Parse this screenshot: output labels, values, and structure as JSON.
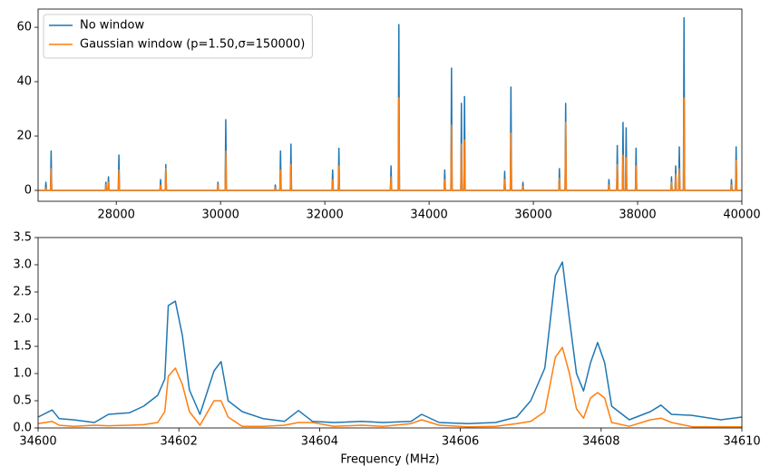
{
  "chart_data": [
    {
      "type": "line",
      "legend": "upper left",
      "x": [
        26500,
        26638,
        26650,
        26662,
        26738,
        26750,
        26762,
        27788,
        27800,
        27812,
        27838,
        27850,
        27862,
        28038,
        28050,
        28062,
        28838,
        28850,
        28862,
        28938,
        28950,
        28962,
        29938,
        29950,
        29962,
        30088,
        30100,
        30112,
        31038,
        31050,
        31062,
        31138,
        31150,
        31162,
        31338,
        31350,
        31362,
        32138,
        32150,
        32162,
        32258,
        32270,
        32282,
        33258,
        33270,
        33282,
        33408,
        33420,
        33432,
        34288,
        34300,
        34312,
        34418,
        34430,
        34442,
        34608,
        34620,
        34632,
        34668,
        34680,
        34692,
        35438,
        35450,
        35462,
        35558,
        35570,
        35582,
        35788,
        35800,
        35812,
        36488,
        36500,
        36512,
        36608,
        36620,
        36632,
        37438,
        37450,
        37462,
        37598,
        37610,
        37622,
        37708,
        37720,
        37732,
        37768,
        37780,
        37792,
        37958,
        37970,
        37982,
        38638,
        38650,
        38662,
        38718,
        38730,
        38742,
        38788,
        38800,
        38812,
        38878,
        38890,
        38902,
        39788,
        39800,
        39812,
        39878,
        39890,
        39902,
        40000
      ],
      "series": [
        {
          "name": "No window",
          "color": "#1f77b4",
          "values": [
            0,
            0,
            3,
            0,
            0,
            14.5,
            0,
            0,
            3,
            0,
            0,
            5,
            0,
            0,
            13,
            0,
            0,
            4,
            0,
            0,
            9.5,
            0,
            0,
            3,
            0,
            0,
            26,
            0,
            0,
            2,
            0,
            0,
            14.5,
            0,
            0,
            17,
            0,
            0,
            7.5,
            0,
            0,
            15.5,
            0,
            0,
            9,
            0,
            0,
            61,
            0,
            0,
            7.5,
            0,
            0,
            45,
            0,
            0,
            32,
            0,
            0,
            34.5,
            0,
            0,
            7,
            0,
            0,
            38,
            0,
            0,
            3,
            0,
            0,
            8,
            0,
            0,
            32,
            0,
            0,
            4,
            0,
            0,
            16.5,
            0,
            0,
            25,
            0,
            0,
            23,
            0,
            0,
            15.5,
            0,
            0,
            5,
            0,
            0,
            9,
            0,
            0,
            16,
            0,
            0,
            63.5,
            0,
            0,
            4,
            0,
            0,
            16,
            0,
            0
          ]
        },
        {
          "name": "Gaussian window (p=1.50,σ=150000)",
          "color": "#ff7f0e",
          "values": [
            0,
            0,
            1,
            0,
            0,
            8,
            0,
            0,
            2,
            0,
            0,
            3,
            0,
            0,
            7.5,
            0,
            0,
            2,
            0,
            0,
            8,
            0,
            0,
            2,
            0,
            0,
            14.5,
            0,
            0,
            1,
            0,
            0,
            7.5,
            0,
            0,
            9.5,
            0,
            0,
            4,
            0,
            0,
            9,
            0,
            0,
            5,
            0,
            0,
            34,
            0,
            0,
            4,
            0,
            0,
            24,
            0,
            0,
            17,
            0,
            0,
            18.5,
            0,
            0,
            4,
            0,
            0,
            21,
            0,
            0,
            1.5,
            0,
            0,
            4.5,
            0,
            0,
            25,
            0,
            0,
            2,
            0,
            0,
            9.5,
            0,
            0,
            13,
            0,
            0,
            12,
            0,
            0,
            9,
            0,
            0,
            3,
            0,
            0,
            6,
            0,
            0,
            8,
            0,
            0,
            34,
            0,
            0,
            2,
            0,
            0,
            11,
            0,
            0
          ]
        }
      ],
      "xlim": [
        26500,
        40000
      ],
      "xticks": [
        28000,
        30000,
        32000,
        34000,
        36000,
        38000,
        40000
      ],
      "ylim": [
        -4,
        66.7
      ],
      "yticks": [
        0,
        20,
        40,
        60
      ]
    },
    {
      "type": "line",
      "xlabel": "Frequency (MHz)",
      "x": [
        34600,
        34600.2,
        34600.3,
        34600.5,
        34600.8,
        34601,
        34601.3,
        34601.5,
        34601.7,
        34601.8,
        34601.85,
        34601.95,
        34602.05,
        34602.15,
        34602.3,
        34602.5,
        34602.6,
        34602.7,
        34602.9,
        34603.2,
        34603.5,
        34603.7,
        34603.9,
        34604.2,
        34604.6,
        34604.9,
        34605.3,
        34605.45,
        34605.7,
        34606.1,
        34606.5,
        34606.8,
        34607,
        34607.2,
        34607.35,
        34607.45,
        34607.55,
        34607.65,
        34607.75,
        34607.85,
        34607.95,
        34608.05,
        34608.15,
        34608.4,
        34608.7,
        34608.85,
        34609,
        34609.3,
        34609.7,
        34610
      ],
      "series": [
        {
          "color": "#1f77b4",
          "values": [
            0.2,
            0.33,
            0.17,
            0.15,
            0.1,
            0.25,
            0.28,
            0.4,
            0.6,
            0.9,
            2.25,
            2.33,
            1.7,
            0.7,
            0.25,
            1.05,
            1.22,
            0.5,
            0.3,
            0.17,
            0.12,
            0.32,
            0.12,
            0.1,
            0.12,
            0.1,
            0.12,
            0.25,
            0.1,
            0.08,
            0.1,
            0.2,
            0.5,
            1.1,
            2.8,
            3.05,
            2.0,
            1.0,
            0.68,
            1.2,
            1.57,
            1.2,
            0.4,
            0.15,
            0.3,
            0.42,
            0.25,
            0.23,
            0.15,
            0.2
          ]
        },
        {
          "color": "#ff7f0e",
          "values": [
            0.08,
            0.12,
            0.05,
            0.03,
            0.05,
            0.04,
            0.05,
            0.06,
            0.1,
            0.3,
            0.95,
            1.1,
            0.8,
            0.3,
            0.05,
            0.5,
            0.5,
            0.2,
            0.03,
            0.03,
            0.05,
            0.1,
            0.1,
            0.03,
            0.05,
            0.03,
            0.08,
            0.15,
            0.05,
            0.02,
            0.03,
            0.08,
            0.12,
            0.3,
            1.3,
            1.48,
            1.0,
            0.35,
            0.18,
            0.55,
            0.65,
            0.55,
            0.1,
            0.03,
            0.15,
            0.18,
            0.1,
            0.02,
            0.02,
            0.02
          ]
        }
      ],
      "xlim": [
        34600,
        34610
      ],
      "xticks": [
        34600,
        34602,
        34604,
        34606,
        34608,
        34610
      ],
      "ylim": [
        0,
        3.5
      ],
      "yticks": [
        {
          "value": 0,
          "label": "0.0"
        },
        0.5,
        {
          "value": 1,
          "label": "1.0"
        },
        1.5,
        {
          "value": 2,
          "label": "2.0"
        },
        2.5,
        {
          "value": 3,
          "label": "3.0"
        },
        3.5
      ]
    }
  ]
}
